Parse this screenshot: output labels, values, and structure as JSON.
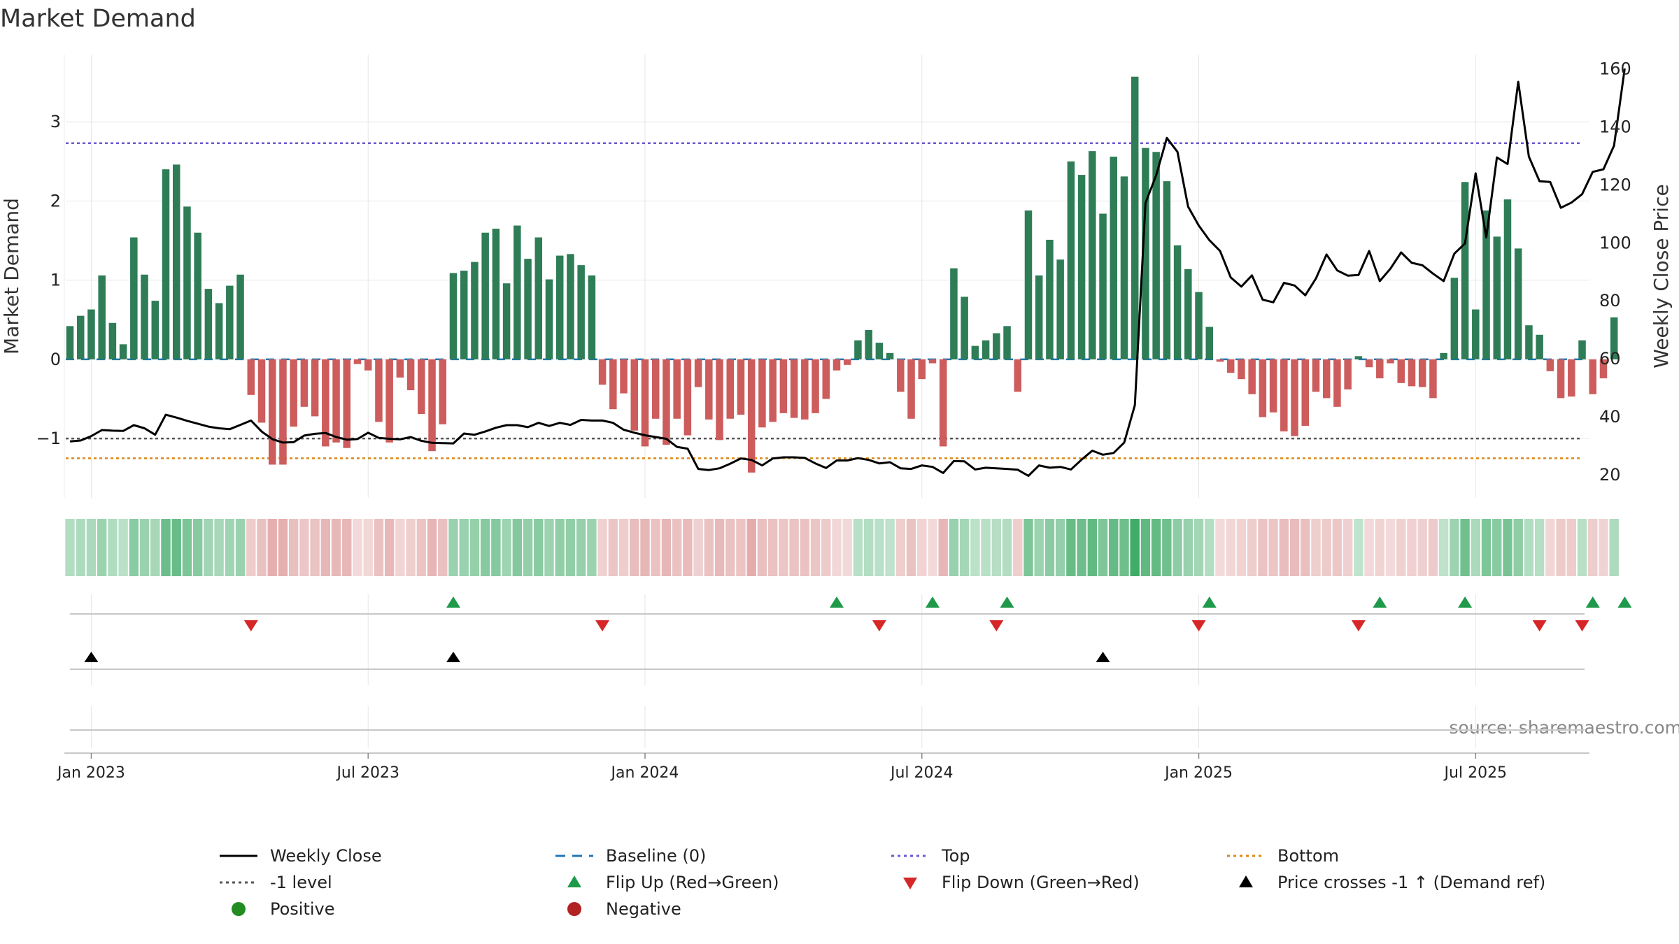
{
  "title": "Market Demand",
  "source": "source: sharemaestro.com",
  "chart_data": {
    "type": "bar",
    "title": "Market Demand",
    "ylabel": "Market Demand",
    "ylabel_right": "Weekly Close Price",
    "y_ticks": [
      "3",
      "2",
      "1",
      "0",
      "−1"
    ],
    "y_tick_values": [
      3,
      2,
      1,
      0,
      -1
    ],
    "ylim": [
      -1.75,
      3.85
    ],
    "y2_ticks": [
      "160",
      "140",
      "120",
      "100",
      "80",
      "60",
      "40",
      "20"
    ],
    "y2_tick_values": [
      160,
      140,
      120,
      100,
      80,
      60,
      40,
      20
    ],
    "y2lim": [
      12,
      165
    ],
    "x_ticks": [
      "Jan 2023",
      "Jul 2023",
      "Jan 2024",
      "Jul 2024",
      "Jan 2025",
      "Jul 2025"
    ],
    "x_tick_index": [
      2,
      28,
      54,
      80,
      106,
      132
    ],
    "top_level": 2.73,
    "bottom_level": -1.25,
    "minus_one_level": -1,
    "baseline": 0,
    "demand": [
      0.42,
      0.55,
      0.63,
      1.06,
      0.46,
      0.19,
      1.54,
      1.07,
      0.74,
      2.4,
      2.46,
      1.93,
      1.6,
      0.89,
      0.71,
      0.93,
      1.07,
      -0.45,
      -0.8,
      -1.33,
      -1.33,
      -0.85,
      -0.6,
      -0.72,
      -1.1,
      -1.05,
      -1.12,
      -0.06,
      -0.14,
      -0.79,
      -1.05,
      -0.23,
      -0.39,
      -0.69,
      -1.16,
      -0.82,
      1.09,
      1.12,
      1.23,
      1.6,
      1.65,
      0.96,
      1.69,
      1.27,
      1.54,
      1.01,
      1.31,
      1.33,
      1.19,
      1.06,
      -0.32,
      -0.63,
      -0.43,
      -0.9,
      -1.1,
      -0.75,
      -1.08,
      -0.75,
      -0.96,
      -0.35,
      -0.76,
      -1.02,
      -0.75,
      -0.7,
      -1.43,
      -0.86,
      -0.79,
      -0.68,
      -0.74,
      -0.76,
      -0.68,
      -0.5,
      -0.14,
      -0.07,
      0.24,
      0.37,
      0.21,
      0.08,
      -0.41,
      -0.75,
      -0.25,
      -0.05,
      -1.1,
      1.15,
      0.79,
      0.17,
      0.24,
      0.33,
      0.42,
      -0.41,
      1.88,
      1.06,
      1.51,
      1.26,
      2.5,
      2.33,
      2.63,
      1.84,
      2.56,
      2.31,
      3.57,
      2.67,
      2.62,
      2.25,
      1.44,
      1.14,
      0.85,
      0.41,
      -0.03,
      -0.17,
      -0.25,
      -0.44,
      -0.73,
      -0.67,
      -0.91,
      -0.97,
      -0.84,
      -0.41,
      -0.49,
      -0.6,
      -0.38,
      0.04,
      -0.1,
      -0.24,
      -0.05,
      -0.3,
      -0.34,
      -0.35,
      -0.49,
      0.08,
      1.03,
      2.24,
      0.63,
      1.88,
      1.55,
      2.02,
      1.4,
      0.43,
      0.31,
      -0.15,
      -0.49,
      -0.47,
      0.24,
      -0.44,
      -0.24,
      0.53
    ],
    "close": [
      31.5,
      31.8,
      33.3,
      35.4,
      35.2,
      35.1,
      37.1,
      36.0,
      33.8,
      40.7,
      39.7,
      38.6,
      37.6,
      36.6,
      36.0,
      35.7,
      37.2,
      38.7,
      34.9,
      32.3,
      31.1,
      31.2,
      33.5,
      34.1,
      34.4,
      33.0,
      32.1,
      32.3,
      34.5,
      32.7,
      32.4,
      32.2,
      33.0,
      31.7,
      31.0,
      30.9,
      30.8,
      34.2,
      33.8,
      34.9,
      36.2,
      37.1,
      37.1,
      36.4,
      37.9,
      36.8,
      37.9,
      37.2,
      38.9,
      38.7,
      38.7,
      37.9,
      35.5,
      34.5,
      33.6,
      33.0,
      32.4,
      29.6,
      29.0,
      22.0,
      21.6,
      22.2,
      23.8,
      25.6,
      25.1,
      23.2,
      25.6,
      26.0,
      26.0,
      25.8,
      23.9,
      22.3,
      24.9,
      24.9,
      25.7,
      25.1,
      23.9,
      24.3,
      22.2,
      22.0,
      23.2,
      22.7,
      20.6,
      24.7,
      24.6,
      21.8,
      22.4,
      22.2,
      22.0,
      21.7,
      19.6,
      23.2,
      22.4,
      22.7,
      21.8,
      25.2,
      28.3,
      26.9,
      27.5,
      31.1,
      44.0,
      113.8,
      123.3,
      136.2,
      131.4,
      112.5,
      106.0,
      100.9,
      97.2,
      88.1,
      84.9,
      88.8,
      80.4,
      79.5,
      86.2,
      85.3,
      81.9,
      87.7,
      96.0,
      90.5,
      88.7,
      88.9,
      97.2,
      86.8,
      91.1,
      96.7,
      93.1,
      92.3,
      89.4,
      86.8,
      96.3,
      99.8,
      124.0,
      101.9,
      129.5,
      127.2,
      155.6,
      129.8,
      121.3,
      121.0,
      112.1,
      113.9,
      116.8,
      124.5,
      125.4,
      133.6,
      160.2
    ],
    "flip_up_index": [
      36,
      72,
      81,
      88,
      107,
      123,
      131,
      143,
      146
    ],
    "flip_down_index": [
      17,
      50,
      76,
      87,
      106,
      121,
      138,
      142
    ],
    "cross_up_index": [
      2,
      36,
      97
    ],
    "legend": [
      {
        "key": "weekly_close",
        "label": "Weekly Close"
      },
      {
        "key": "baseline",
        "label": "Baseline (0)"
      },
      {
        "key": "top",
        "label": "Top"
      },
      {
        "key": "bottom",
        "label": "Bottom"
      },
      {
        "key": "minus_one",
        "label": "-1 level"
      },
      {
        "key": "flip_up",
        "label": "Flip Up (Red→Green)"
      },
      {
        "key": "flip_down",
        "label": "Flip Down (Green→Red)"
      },
      {
        "key": "cross",
        "label": "Price crosses -1 ↑ (Demand ref)"
      },
      {
        "key": "positive",
        "label": "Positive"
      },
      {
        "key": "negative",
        "label": "Negative"
      }
    ]
  },
  "colors": {
    "positive_bar": "#2e7d57",
    "negative_bar": "#cd5c5c",
    "close_line": "#000000",
    "baseline": "#1f77b4",
    "top_line": "#6a5acd",
    "bottom_line": "#d98a16",
    "minus_one_line": "#555555",
    "flip_up": "#1e9a4a",
    "flip_down": "#d62728",
    "cross": "#000000",
    "positive_dot": "#228b22",
    "negative_dot": "#b22222",
    "grid": "#e6e6e6",
    "panel_axis": "#c8c8c8"
  }
}
